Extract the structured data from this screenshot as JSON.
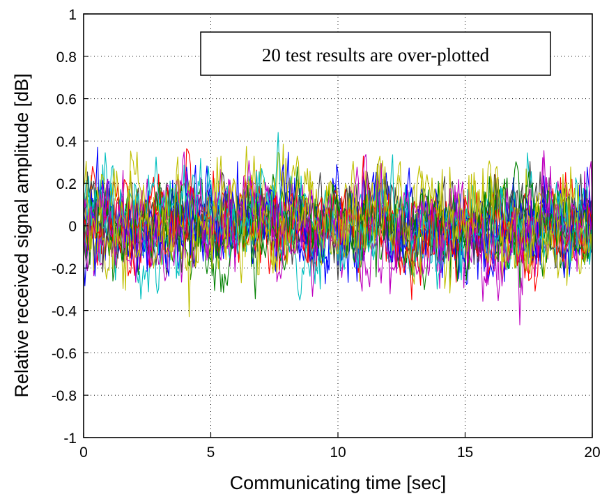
{
  "chart_data": {
    "type": "line",
    "title": "",
    "xlabel": "Communicating time [sec]",
    "ylabel": "Relative received signal amplitude [dB]",
    "xlim": [
      0,
      20
    ],
    "ylim": [
      -1,
      1
    ],
    "x_ticks": [
      0,
      5,
      10,
      15,
      20
    ],
    "x_tick_labels": [
      "0",
      "5",
      "10",
      "15",
      "20"
    ],
    "y_ticks": [
      -1,
      -0.8,
      -0.6,
      -0.4,
      -0.2,
      0,
      0.2,
      0.4,
      0.6,
      0.8,
      1
    ],
    "y_tick_labels": [
      "-1",
      "-0.8",
      "-0.6",
      "-0.4",
      "-0.2",
      "0",
      "0.2",
      "0.4",
      "0.6",
      "0.8",
      "1"
    ],
    "grid": true,
    "annotation": "20 test results are over-plotted",
    "sample_count": 400,
    "series": [
      {
        "color": "#0000ff",
        "amplitude": 0.17,
        "seed": 11
      },
      {
        "color": "#ff0000",
        "amplitude": 0.16,
        "seed": 23
      },
      {
        "color": "#008000",
        "amplitude": 0.17,
        "seed": 37
      },
      {
        "color": "#00bfbf",
        "amplitude": 0.18,
        "seed": 41
      },
      {
        "color": "#bf00bf",
        "amplitude": 0.18,
        "seed": 53
      },
      {
        "color": "#bfbf00",
        "amplitude": 0.21,
        "seed": 67
      },
      {
        "color": "#404040",
        "amplitude": 0.16,
        "seed": 71
      },
      {
        "color": "#0000ff",
        "amplitude": 0.18,
        "seed": 83
      },
      {
        "color": "#ff0000",
        "amplitude": 0.15,
        "seed": 97
      },
      {
        "color": "#008000",
        "amplitude": 0.17,
        "seed": 101
      },
      {
        "color": "#00bfbf",
        "amplitude": 0.19,
        "seed": 113
      },
      {
        "color": "#bf00bf",
        "amplitude": 0.19,
        "seed": 127
      },
      {
        "color": "#bfbf00",
        "amplitude": 0.2,
        "seed": 131
      },
      {
        "color": "#404040",
        "amplitude": 0.17,
        "seed": 149
      },
      {
        "color": "#0000ff",
        "amplitude": 0.19,
        "seed": 157
      },
      {
        "color": "#ff0000",
        "amplitude": 0.16,
        "seed": 163
      },
      {
        "color": "#008000",
        "amplitude": 0.18,
        "seed": 179
      },
      {
        "color": "#00bfbf",
        "amplitude": 0.17,
        "seed": 181
      },
      {
        "color": "#bf00bf",
        "amplitude": 0.18,
        "seed": 191
      },
      {
        "color": "#bfbf00",
        "amplitude": 0.2,
        "seed": 199
      }
    ]
  }
}
